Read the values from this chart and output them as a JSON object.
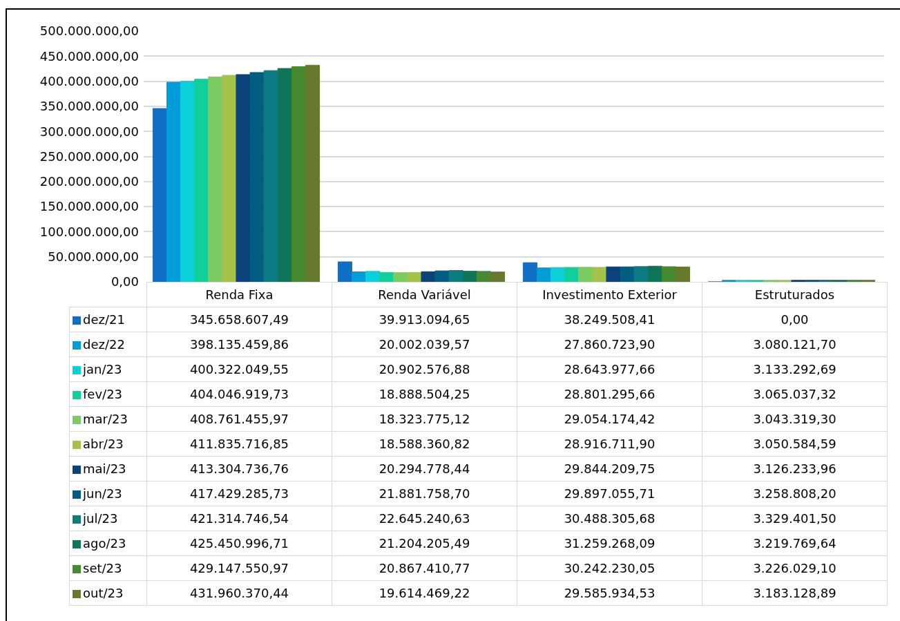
{
  "chart_data": {
    "type": "bar",
    "categories": [
      "Renda Fixa",
      "Renda Variável",
      "Investimento Exterior",
      "Estruturados"
    ],
    "series": [
      {
        "name": "dez/21",
        "color": "#0f6fc6",
        "values": [
          345658607.49,
          39913094.65,
          38249508.41,
          0
        ],
        "value_labels": [
          "345.658.607,49",
          "39.913.094,65",
          "38.249.508,41",
          "0,00"
        ]
      },
      {
        "name": "dez/22",
        "color": "#009dd9",
        "values": [
          398135459.86,
          20002039.57,
          27860723.9,
          3080121.7
        ],
        "value_labels": [
          "398.135.459,86",
          "20.002.039,57",
          "27.860.723,90",
          "3.080.121,70"
        ]
      },
      {
        "name": "jan/23",
        "color": "#0bd0d9",
        "values": [
          400322049.55,
          20902576.88,
          28643977.66,
          3133292.69
        ],
        "value_labels": [
          "400.322.049,55",
          "20.902.576,88",
          "28.643.977,66",
          "3.133.292,69"
        ]
      },
      {
        "name": "fev/23",
        "color": "#10cf9b",
        "values": [
          404046919.73,
          18888504.25,
          28801295.66,
          3065037.32
        ],
        "value_labels": [
          "404.046.919,73",
          "18.888.504,25",
          "28.801.295,66",
          "3.065.037,32"
        ]
      },
      {
        "name": "mar/23",
        "color": "#7cca62",
        "values": [
          408761455.97,
          18323775.12,
          29054174.42,
          3043319.3
        ],
        "value_labels": [
          "408.761.455,97",
          "18.323.775,12",
          "29.054.174,42",
          "3.043.319,30"
        ]
      },
      {
        "name": "abr/23",
        "color": "#a5c249",
        "values": [
          411835716.85,
          18588360.82,
          28916711.9,
          3050584.59
        ],
        "value_labels": [
          "411.835.716,85",
          "18.588.360,82",
          "28.916.711,90",
          "3.050.584,59"
        ]
      },
      {
        "name": "mai/23",
        "color": "#0b4279",
        "values": [
          413304736.76,
          20294778.44,
          29844209.75,
          3126233.96
        ],
        "value_labels": [
          "413.304.736,76",
          "20.294.778,44",
          "29.844.209,75",
          "3.126.233,96"
        ]
      },
      {
        "name": "jun/23",
        "color": "#025d81",
        "values": [
          417429285.73,
          21881758.7,
          29897055.71,
          3258808.2
        ],
        "value_labels": [
          "417.429.285,73",
          "21.881.758,70",
          "29.897.055,71",
          "3.258.808,20"
        ]
      },
      {
        "name": "jul/23",
        "color": "#0a7b83",
        "values": [
          421314746.54,
          22645240.63,
          30488305.68,
          3329401.5
        ],
        "value_labels": [
          "421.314.746,54",
          "22.645.240,63",
          "30.488.305,68",
          "3.329.401,50"
        ]
      },
      {
        "name": "ago/23",
        "color": "#0e7658",
        "values": [
          425450996.71,
          21204205.49,
          31259268.09,
          3219769.64
        ],
        "value_labels": [
          "425.450.996,71",
          "21.204.205,49",
          "31.259.268,09",
          "3.219.769,64"
        ]
      },
      {
        "name": "set/23",
        "color": "#458a30",
        "values": [
          429147550.97,
          20867410.77,
          30242230.05,
          3226029.1
        ],
        "value_labels": [
          "429.147.550,97",
          "20.867.410,77",
          "30.242.230,05",
          "3.226.029,10"
        ]
      },
      {
        "name": "out/23",
        "color": "#667a2b",
        "values": [
          431960370.44,
          19614469.22,
          29585934.53,
          3183128.89
        ],
        "value_labels": [
          "431.960.370,44",
          "19.614.469,22",
          "29.585.934,53",
          "3.183.128,89"
        ]
      }
    ],
    "ylim": [
      0,
      500000000
    ],
    "yticks": [
      {
        "value": 0,
        "label": "0,00"
      },
      {
        "value": 50000000,
        "label": "50.000.000,00"
      },
      {
        "value": 100000000,
        "label": "100.000.000,00"
      },
      {
        "value": 150000000,
        "label": "150.000.000,00"
      },
      {
        "value": 200000000,
        "label": "200.000.000,00"
      },
      {
        "value": 250000000,
        "label": "250.000.000,00"
      },
      {
        "value": 300000000,
        "label": "300.000.000,00"
      },
      {
        "value": 350000000,
        "label": "350.000.000,00"
      },
      {
        "value": 400000000,
        "label": "400.000.000,00"
      },
      {
        "value": 450000000,
        "label": "450.000.000,00"
      },
      {
        "value": 500000000,
        "label": "500.000.000,00"
      }
    ],
    "grid": "y",
    "legend": "bottom left",
    "tick_labels": "y"
  }
}
